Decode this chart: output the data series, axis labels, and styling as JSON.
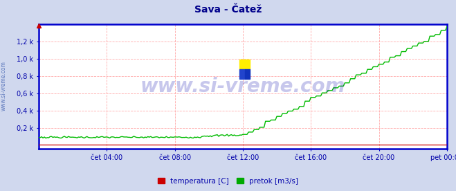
{
  "title": "Sava - Čatež",
  "title_color": "#00008b",
  "title_fontsize": 10,
  "bg_color": "#d0d8ee",
  "plot_bg_color": "#ffffff",
  "grid_color": "#ffaaaa",
  "axis_color": "#0000cc",
  "tick_label_color": "#0000aa",
  "tick_fontsize": 7,
  "watermark_text": "www.si-vreme.com",
  "watermark_color": "#0000aa",
  "watermark_alpha": 0.22,
  "ytick_labels": [
    "0,2 k",
    "0,4 k",
    "0,6 k",
    "0,8 k",
    "1,0 k",
    "1,2 k"
  ],
  "ytick_values": [
    200,
    400,
    600,
    800,
    1000,
    1200
  ],
  "ymin": -40,
  "ymax": 1400,
  "xmin": 0,
  "xmax": 288,
  "xtick_positions": [
    48,
    96,
    144,
    192,
    240,
    288
  ],
  "xtick_labels": [
    "čet 04:00",
    "čet 08:00",
    "čet 12:00",
    "čet 16:00",
    "čet 20:00",
    "pet 00:00"
  ],
  "legend_labels": [
    "temperatura [C]",
    "pretok [m3/s]"
  ],
  "legend_colors": [
    "#cc0000",
    "#00aa00"
  ],
  "temp_color": "#cc0000",
  "flow_color": "#00bb00",
  "sidebar_text": "www.si-vreme.com",
  "sidebar_color": "#3355aa",
  "logo_colors_top": "#ffee00",
  "logo_colors_mid": "#ffee00",
  "logo_colors_bot": "#2244cc"
}
